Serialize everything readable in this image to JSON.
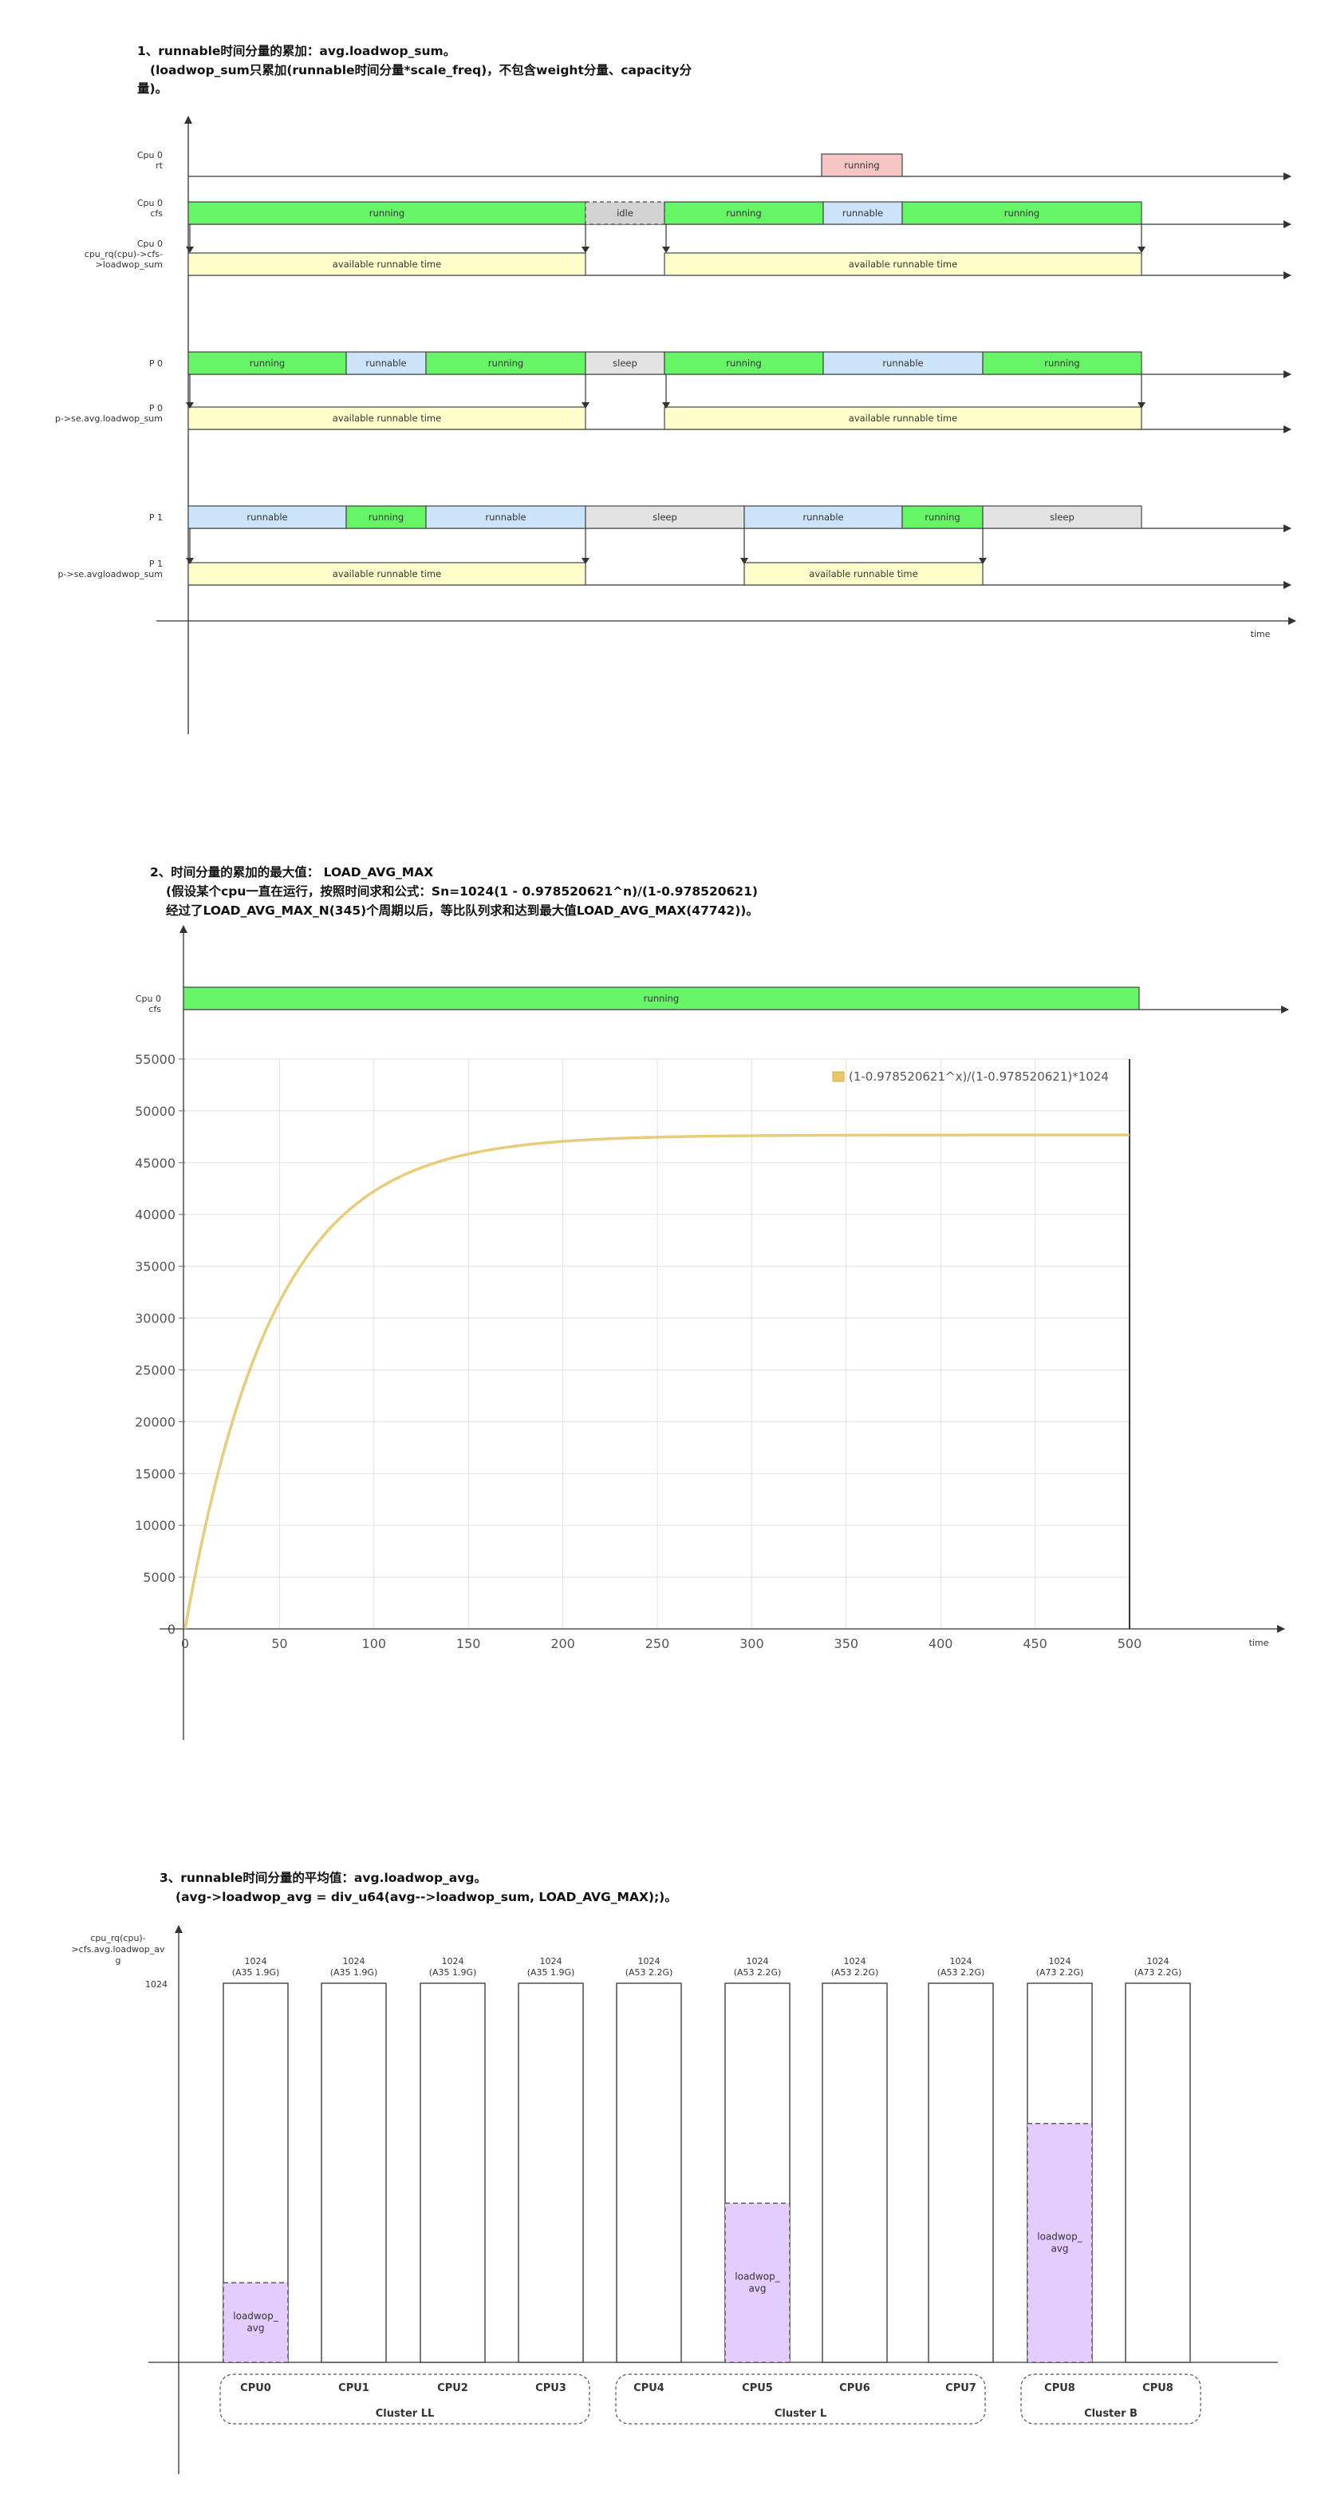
{
  "section1": {
    "heading": "1、runnable时间分量的累加：avg.loadwop_sum。",
    "subtitle_lines": [
      "(loadwop_sum只累加(runnable时间分量*scale_freq)，不包含weight分量、capacity分",
      "量)。"
    ],
    "rows": [
      {
        "label": [
          "Cpu 0",
          "rt"
        ],
        "segments": [
          {
            "text": "running",
            "color": "#f8c5c5",
            "dashed": false
          }
        ]
      },
      {
        "label": [
          "Cpu 0",
          "cfs"
        ],
        "segments": [
          {
            "text": "running",
            "color": "#66f566",
            "dashed": false
          },
          {
            "text": "idle",
            "color": "#d2d2d2",
            "dashed": true
          },
          {
            "text": "running",
            "color": "#66f566",
            "dashed": false
          },
          {
            "text": "runnable",
            "color": "#cce4fa",
            "dashed": false
          },
          {
            "text": "running",
            "color": "#66f566",
            "dashed": false
          }
        ]
      },
      {
        "label": [
          "Cpu 0",
          "cpu_rq(cpu)->cfs-",
          ">loadwop_sum"
        ],
        "segments": [
          {
            "text": "available runnable time",
            "color": "#ffffcc",
            "dashed": false
          },
          {
            "text": "available runnable time",
            "color": "#ffffcc",
            "dashed": false
          }
        ]
      },
      {
        "label": [
          "P 0"
        ],
        "segments": [
          {
            "text": "running",
            "color": "#66f566",
            "dashed": false
          },
          {
            "text": "runnable",
            "color": "#cce4fa",
            "dashed": false
          },
          {
            "text": "running",
            "color": "#66f566",
            "dashed": false
          },
          {
            "text": "sleep",
            "color": "#e3e3e3",
            "dashed": false
          },
          {
            "text": "running",
            "color": "#66f566",
            "dashed": false
          },
          {
            "text": "runnable",
            "color": "#cce4fa",
            "dashed": false
          },
          {
            "text": "running",
            "color": "#66f566",
            "dashed": false
          }
        ]
      },
      {
        "label": [
          "P 0",
          "p->se.avg.loadwop_sum"
        ],
        "segments": [
          {
            "text": "available runnable time",
            "color": "#ffffcc",
            "dashed": false
          },
          {
            "text": "available runnable time",
            "color": "#ffffcc",
            "dashed": false
          }
        ]
      },
      {
        "label": [
          "P 1"
        ],
        "segments": [
          {
            "text": "runnable",
            "color": "#cce4fa",
            "dashed": false
          },
          {
            "text": "running",
            "color": "#66f566",
            "dashed": false
          },
          {
            "text": "runnable",
            "color": "#cce4fa",
            "dashed": false
          },
          {
            "text": "sleep",
            "color": "#e3e3e3",
            "dashed": false
          },
          {
            "text": "runnable",
            "color": "#cce4fa",
            "dashed": false
          },
          {
            "text": "running",
            "color": "#66f566",
            "dashed": false
          },
          {
            "text": "sleep",
            "color": "#e3e3e3",
            "dashed": false
          }
        ]
      },
      {
        "label": [
          "P 1",
          "p->se.avgloadwop_sum"
        ],
        "segments": [
          {
            "text": "available runnable time",
            "color": "#ffffcc",
            "dashed": false
          },
          {
            "text": "available runnable time",
            "color": "#ffffcc",
            "dashed": false
          }
        ]
      }
    ],
    "time_label": "time"
  },
  "section2": {
    "heading": "2、时间分量的累加的最大值： LOAD_AVG_MAX",
    "subtitle_lines": [
      "(假设某个cpu一直在运行，按照时间求和公式：Sn=1024(1 - 0.978520621^n)/(1-0.978520621)",
      "经过了LOAD_AVG_MAX_N(345)个周期以后，等比队列求和达到最大值LOAD_AVG_MAX(47742))。"
    ],
    "bar_label": [
      "Cpu 0",
      "cfs"
    ],
    "bar_text": "running",
    "bar_color": "#66f566",
    "time_label": "time"
  },
  "chart_data": {
    "type": "line",
    "series": [
      {
        "name": "(1-0.978520621^x)/(1-0.978520621)*1024",
        "color": "#e6c76a",
        "formula": "1024*(1-0.978520621^x)/(1-0.978520621)"
      }
    ],
    "x_ticks": [
      0,
      50,
      100,
      150,
      200,
      250,
      300,
      350,
      400,
      450,
      500
    ],
    "y_ticks": [
      0,
      5000,
      10000,
      15000,
      20000,
      25000,
      30000,
      35000,
      40000,
      45000,
      50000,
      55000
    ],
    "xlim": [
      0,
      500
    ],
    "ylim": [
      0,
      55000
    ],
    "grid": true,
    "legend": "top-right",
    "xlabel": "",
    "ylabel": ""
  },
  "section3": {
    "heading": "3、runnable时间分量的平均值：avg.loadwop_avg。",
    "subtitle_lines": [
      "(avg->loadwop_avg = div_u64(avg-->loadwop_sum, LOAD_AVG_MAX);)。"
    ],
    "y_axis_label": [
      "cpu_rq(cpu)-",
      ">cfs.avg.loadwop_av",
      "g"
    ],
    "y_tick": "1024",
    "max_value": 1024,
    "fill_color": "#e5ccff",
    "cpus": [
      {
        "name": "CPU0",
        "cap": [
          "1024",
          "(A35 1.9G)"
        ],
        "fill_fraction": 0.21,
        "fill_label": [
          "loadwop_",
          "avg"
        ]
      },
      {
        "name": "CPU1",
        "cap": [
          "1024",
          "(A35 1.9G)"
        ],
        "fill_fraction": 0,
        "fill_label": []
      },
      {
        "name": "CPU2",
        "cap": [
          "1024",
          "(A35 1.9G)"
        ],
        "fill_fraction": 0,
        "fill_label": []
      },
      {
        "name": "CPU3",
        "cap": [
          "1024",
          "(A35 1.9G)"
        ],
        "fill_fraction": 0,
        "fill_label": []
      },
      {
        "name": "CPU4",
        "cap": [
          "1024",
          "(A53 2.2G)"
        ],
        "fill_fraction": 0,
        "fill_label": []
      },
      {
        "name": "CPU5",
        "cap": [
          "1024",
          "(A53 2.2G)"
        ],
        "fill_fraction": 0.42,
        "fill_label": [
          "loadwop_",
          "avg"
        ]
      },
      {
        "name": "CPU6",
        "cap": [
          "1024",
          "(A53 2.2G)"
        ],
        "fill_fraction": 0,
        "fill_label": []
      },
      {
        "name": "CPU7",
        "cap": [
          "1024",
          "(A53 2.2G)"
        ],
        "fill_fraction": 0,
        "fill_label": []
      },
      {
        "name": "CPU8",
        "cap": [
          "1024",
          "(A73 2.2G)"
        ],
        "fill_fraction": 0.63,
        "fill_label": [
          "loadwop_",
          "avg"
        ]
      },
      {
        "name": "CPU8",
        "cap": [
          "1024",
          "(A73 2.2G)"
        ],
        "fill_fraction": 0,
        "fill_label": []
      }
    ],
    "clusters": [
      "Cluster LL",
      "Cluster L",
      "Cluster B"
    ]
  }
}
